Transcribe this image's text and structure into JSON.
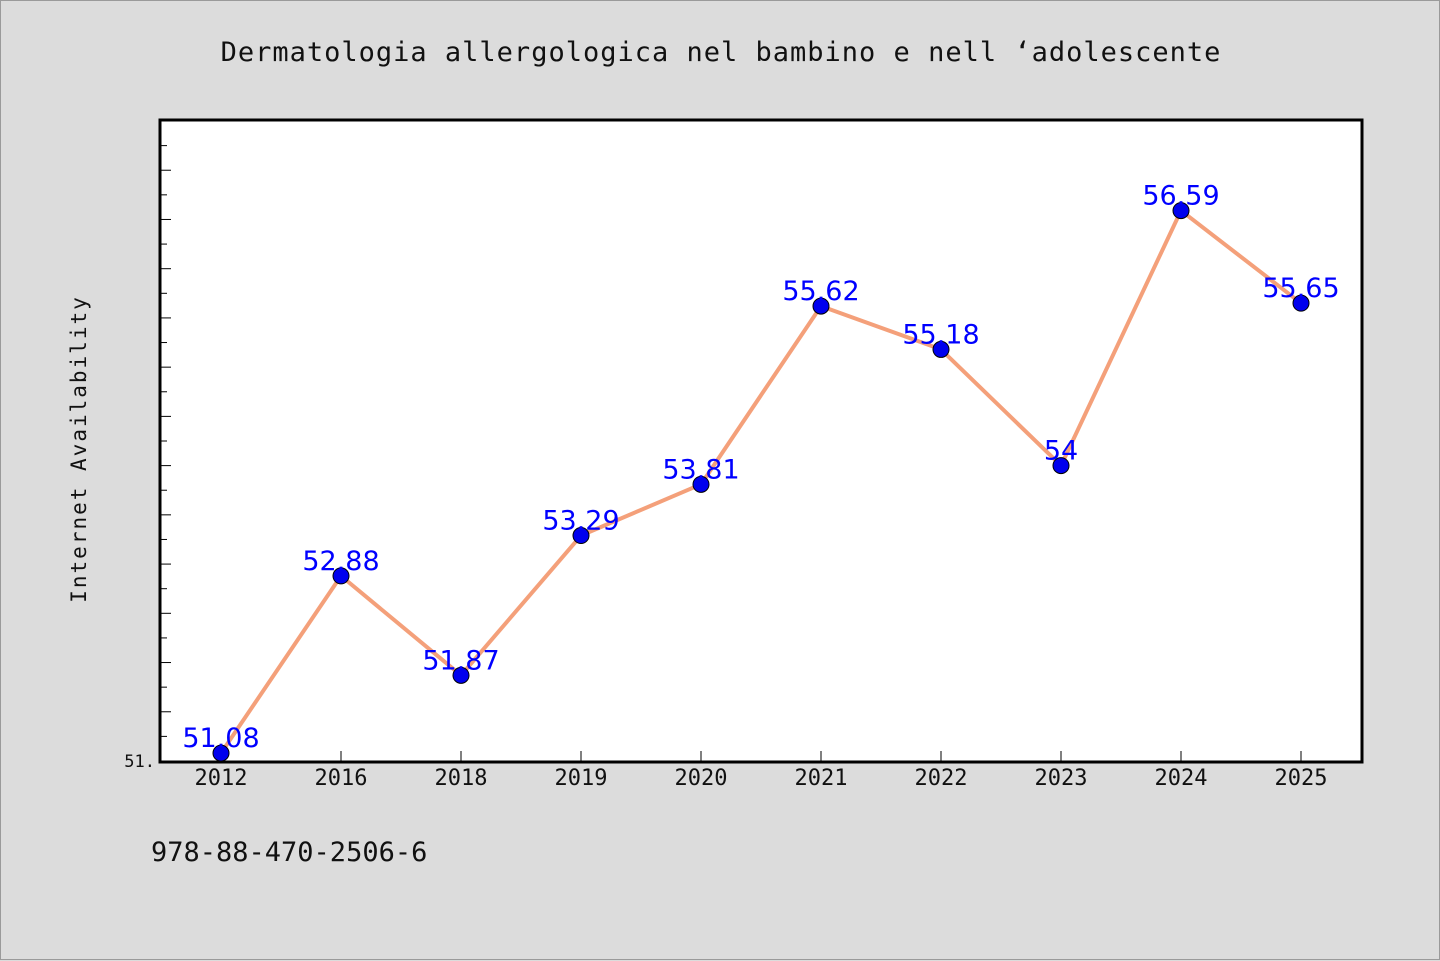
{
  "chart_data": {
    "type": "line",
    "title": "Dermatologia allergologica nel bambino e nell ‘adolescente",
    "xlabel": "",
    "ylabel": "Internet Availability",
    "categories": [
      "2012",
      "2016",
      "2018",
      "2019",
      "2020",
      "2021",
      "2022",
      "2023",
      "2024",
      "2025"
    ],
    "series": [
      {
        "values": [
          51.08,
          52.88,
          51.87,
          53.29,
          53.81,
          55.62,
          55.18,
          54,
          56.59,
          55.65
        ],
        "labels": [
          "51.08",
          "52.88",
          "51.87",
          "53.29",
          "53.81",
          "55.62",
          "55.18",
          "54",
          "56.59",
          "55.65"
        ],
        "line_color": "#f4a07a",
        "marker_color": "#0000ee",
        "label_color": "#0000ff"
      }
    ],
    "ylim": [
      51,
      57.5
    ],
    "y_tick_label": "51.",
    "grid": false,
    "legend": "none"
  },
  "footer": {
    "code": "978-88-470-2506-6"
  }
}
